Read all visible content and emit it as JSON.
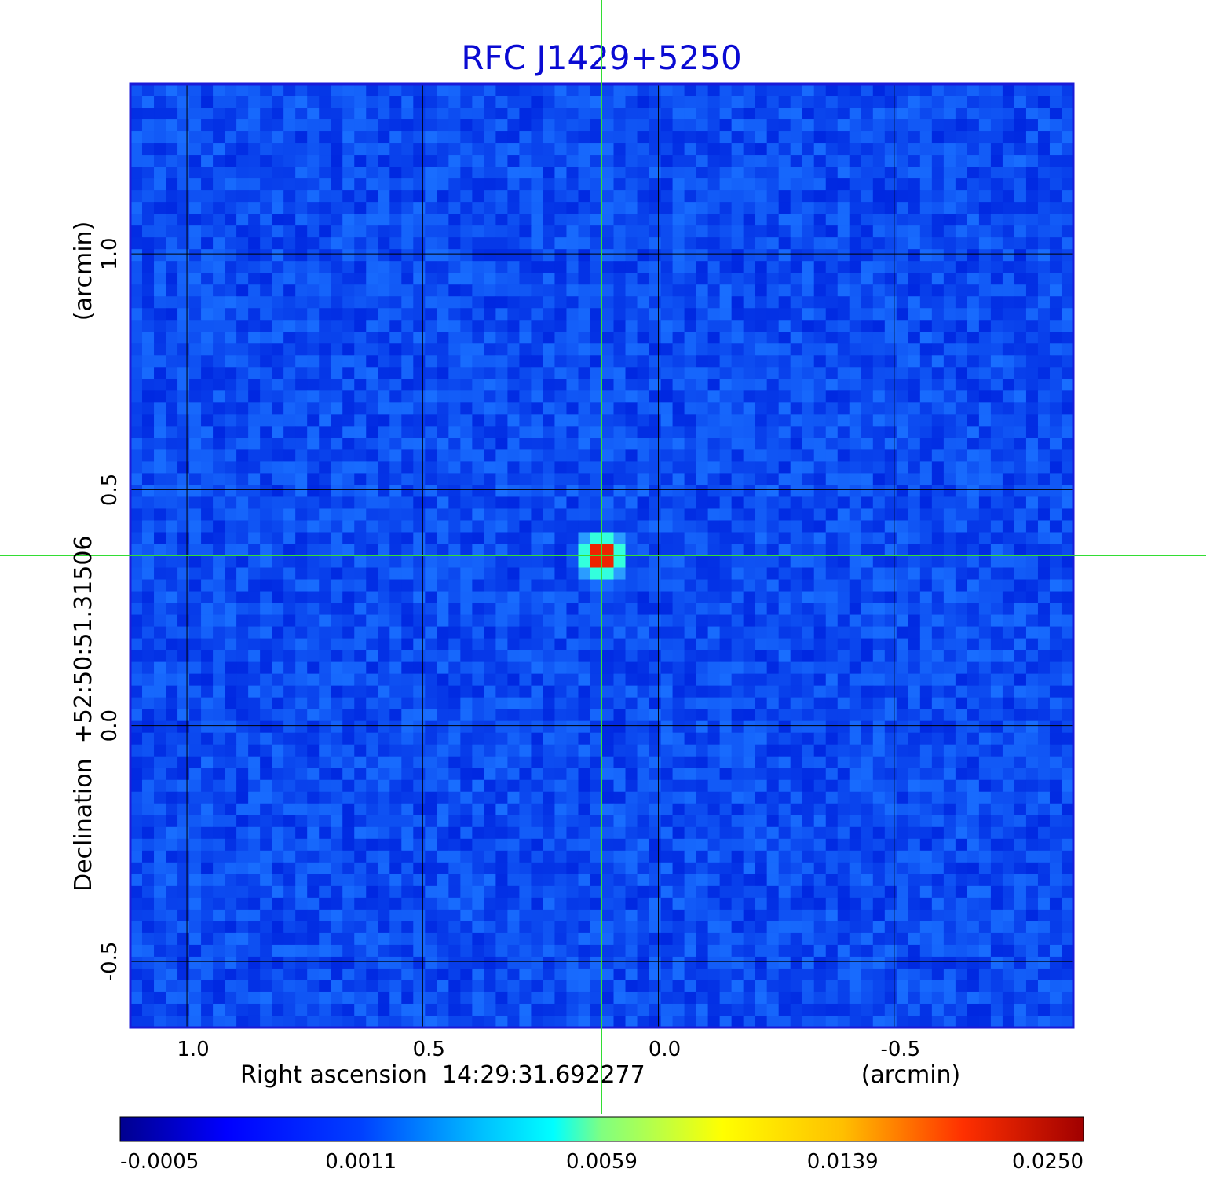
{
  "chart_data": {
    "type": "heatmap",
    "title": "RFC J1429+5250",
    "title_color": "#0a0ad2",
    "xlabel": "Right ascension  14:29:31.692277",
    "xunit": "(arcmin)",
    "ylabel": "Declination  +52:50:51.31506",
    "yunit": "(arcmin)",
    "x_axis_direction": "decreasing-to-right",
    "xlim": [
      1.12,
      -0.88
    ],
    "ylim": [
      -0.64,
      1.36
    ],
    "x_ticks": [
      1.0,
      0.5,
      0.0,
      -0.5
    ],
    "x_tick_labels": [
      "1.0",
      "0.5",
      "0.0",
      "-0.5"
    ],
    "y_ticks": [
      1.0,
      0.5,
      0.0,
      -0.5
    ],
    "y_tick_labels": [
      "1.0",
      "0.5",
      "0.0",
      "-0.5"
    ],
    "grid": true,
    "crosshair": {
      "x": 0.12,
      "y": 0.36,
      "color": "#33dd33"
    },
    "colormap": "jet",
    "colorbar": {
      "position": "bottom",
      "tick_labels": [
        "-0.0005",
        "0.0011",
        "0.0059",
        "0.0139",
        "0.0250"
      ],
      "tick_values": [
        -0.0005,
        0.0011,
        0.0059,
        0.0139,
        0.025
      ]
    },
    "peak": {
      "x": 0.12,
      "y": 0.36,
      "value": 0.025
    },
    "frame_color": "#1a1ad8"
  }
}
